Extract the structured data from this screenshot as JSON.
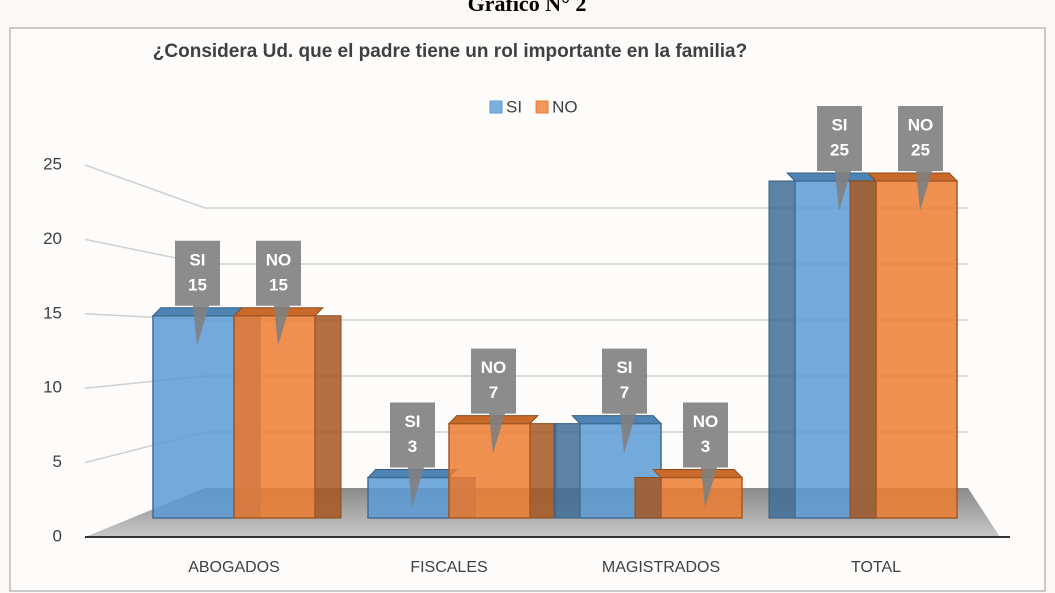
{
  "header": "Gráfico N° 2",
  "chart_data": {
    "type": "bar3d",
    "title": "¿Considera Ud. que el padre tiene un rol importante en la familia?",
    "categories": [
      "ABOGADOS",
      "FISCALES",
      "MAGISTRADOS",
      "TOTAL"
    ],
    "series": [
      {
        "name": "SI",
        "color": "#5b9bd5",
        "values": [
          15,
          3,
          7,
          25
        ]
      },
      {
        "name": "NO",
        "color": "#ed7d31",
        "values": [
          15,
          7,
          3,
          25
        ]
      }
    ],
    "ylim": [
      0,
      25
    ],
    "yticks": [
      0,
      5,
      10,
      15,
      20,
      25
    ],
    "grid": true,
    "legend": "top"
  }
}
